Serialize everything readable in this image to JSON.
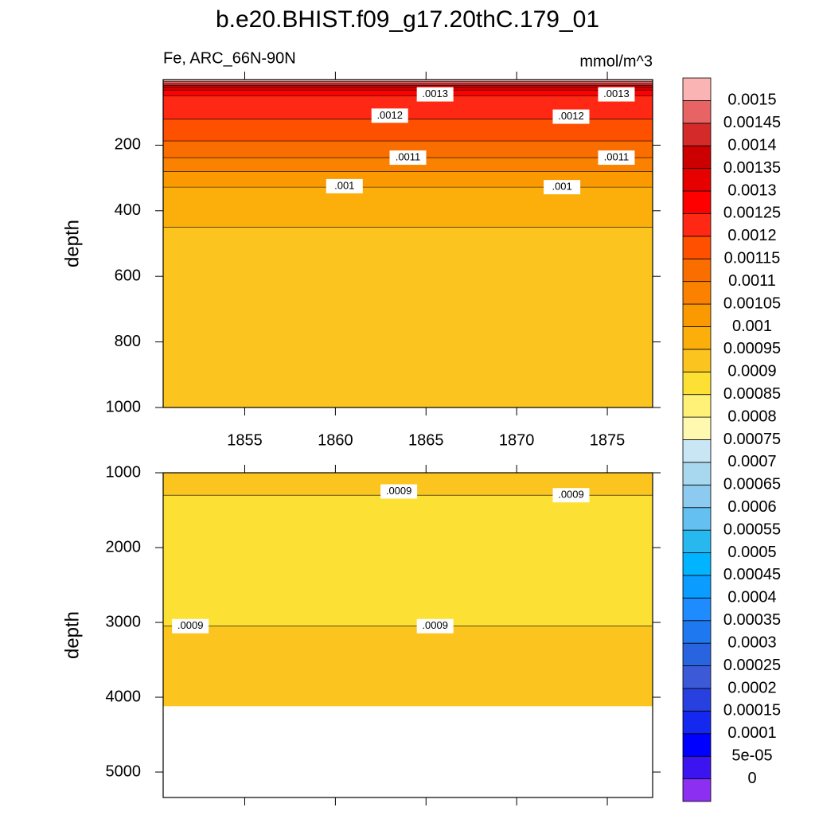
{
  "chart_data": {
    "type": "contour",
    "title": "b.e20.BHIST.f09_g17.20thC.179_01",
    "colorbar": {
      "levels": [
        0,
        {
          "value": 5e-05,
          "label": "5e-05"
        },
        0.0001,
        0.00015,
        0.0002,
        0.00025,
        0.0003,
        0.00035,
        0.0004,
        0.00045,
        0.0005,
        0.00055,
        0.0006,
        0.00065,
        0.0007,
        0.00075,
        0.0008,
        0.00085,
        0.0009,
        0.00095,
        0.001,
        0.00105,
        0.0011,
        0.00115,
        0.0012,
        0.00125,
        0.0013,
        0.00135,
        0.0014,
        0.00145,
        0.0015
      ],
      "colors": [
        "#8c2ff0",
        "#3c14f0",
        "#0000ff",
        "#1428f0",
        "#2840e0",
        "#3c5ad8",
        "#2864e0",
        "#1e78f0",
        "#1e8cff",
        "#0a9cff",
        "#00b4ff",
        "#28b8f0",
        "#64c0f0",
        "#8ccaf0",
        "#a8d8f0",
        "#c8e6f4",
        "#fff8b0",
        "#fff078",
        "#fde034",
        "#fcc41e",
        "#fcae0a",
        "#fa9a00",
        "#fa8200",
        "#fa6e00",
        "#ff5000",
        "#ff2814",
        "#ff0000",
        "#e60000",
        "#cc0000",
        "#d42a2a",
        "#e86464",
        "#fbb4b4"
      ]
    },
    "panels": [
      {
        "left_label": "Fe, ARC_66N-90N",
        "right_label": "mmol/m^3",
        "ylabel": "depth",
        "xlim": [
          1850.5,
          1877.5
        ],
        "xticks": [
          1855,
          1860,
          1865,
          1870,
          1875
        ],
        "ylim": [
          0,
          1000
        ],
        "yticks": [
          200,
          400,
          600,
          800,
          1000
        ],
        "depths": [
          0,
          6,
          12,
          18,
          24,
          32,
          49,
          121,
          187,
          238,
          280,
          328,
          450,
          1000
        ],
        "values": [
          0.00152,
          0.00147,
          0.00142,
          0.00137,
          0.00132,
          0.00127,
          0.00122,
          0.00117,
          0.00112,
          0.00107,
          0.00102,
          0.00097,
          0.00092
        ],
        "contour_labels": [
          {
            "text": ".0013",
            "x": 1865.5,
            "depth": 45
          },
          {
            "text": ".0013",
            "x": 1875.5,
            "depth": 45
          },
          {
            "text": ".0012",
            "x": 1863,
            "depth": 110
          },
          {
            "text": ".0012",
            "x": 1873,
            "depth": 113
          },
          {
            "text": ".0011",
            "x": 1864,
            "depth": 238
          },
          {
            "text": ".0011",
            "x": 1875.5,
            "depth": 238
          },
          {
            "text": ".001",
            "x": 1860.5,
            "depth": 325
          },
          {
            "text": ".001",
            "x": 1872.5,
            "depth": 328
          }
        ]
      },
      {
        "ylabel": "depth",
        "xlim": [
          1850.5,
          1877.5
        ],
        "ylim": [
          1000,
          5340
        ],
        "yticks": [
          1000,
          2000,
          3000,
          4000,
          5000
        ],
        "depths": [
          1000,
          1300,
          3050,
          4120
        ],
        "values": [
          0.00092,
          0.00087,
          0.00092
        ],
        "contour_labels": [
          {
            "text": ".0009",
            "x": 1863.5,
            "depth": 1250
          },
          {
            "text": ".0009",
            "x": 1873,
            "depth": 1300
          },
          {
            "text": ".0009",
            "x": 1852,
            "depth": 3050
          },
          {
            "text": ".0009",
            "x": 1865.5,
            "depth": 3050
          }
        ]
      }
    ]
  }
}
